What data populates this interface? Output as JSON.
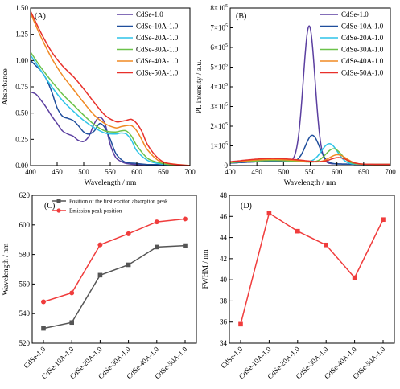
{
  "chart_data": [
    {
      "panel": "(A)",
      "type": "line",
      "xlabel": "Wavelength / nm",
      "ylabel": "Absorbance",
      "xlim": [
        400,
        700
      ],
      "ylim": [
        0,
        1.5
      ],
      "xticks": [
        400,
        450,
        500,
        550,
        600,
        650,
        700
      ],
      "yticks": [
        0.0,
        0.25,
        0.5,
        0.75,
        1.0,
        1.25,
        1.5
      ],
      "ytick_labels": [
        "0.00",
        "0.25",
        "0.50",
        "0.75",
        "1.00",
        "1.25",
        "1.50"
      ],
      "legend": "top-right",
      "series": [
        {
          "name": "CdSe-1.0",
          "color": "#5b3fa0",
          "x": [
            400,
            410,
            420,
            430,
            440,
            450,
            460,
            470,
            480,
            490,
            500,
            510,
            520,
            530,
            540,
            550,
            560,
            570,
            580,
            600,
            620,
            650,
            700
          ],
          "y": [
            0.7,
            0.68,
            0.62,
            0.55,
            0.47,
            0.4,
            0.33,
            0.3,
            0.28,
            0.24,
            0.23,
            0.28,
            0.4,
            0.46,
            0.4,
            0.2,
            0.08,
            0.04,
            0.02,
            0.01,
            0.01,
            0.0,
            0.0
          ]
        },
        {
          "name": "CdSe-10A-1.0",
          "color": "#1f4e9c",
          "x": [
            400,
            410,
            420,
            430,
            440,
            450,
            460,
            470,
            480,
            490,
            500,
            510,
            520,
            530,
            540,
            550,
            560,
            570,
            580,
            600,
            620,
            650,
            700
          ],
          "y": [
            1.0,
            0.95,
            0.9,
            0.82,
            0.7,
            0.55,
            0.47,
            0.45,
            0.43,
            0.38,
            0.32,
            0.3,
            0.33,
            0.4,
            0.36,
            0.25,
            0.12,
            0.06,
            0.03,
            0.02,
            0.01,
            0.01,
            0.0
          ]
        },
        {
          "name": "CdSe-20A-1.0",
          "color": "#2ec4e8",
          "x": [
            400,
            420,
            440,
            460,
            480,
            500,
            520,
            540,
            560,
            570,
            580,
            590,
            600,
            620,
            640,
            660,
            700
          ],
          "y": [
            1.05,
            0.9,
            0.75,
            0.62,
            0.52,
            0.43,
            0.36,
            0.31,
            0.3,
            0.31,
            0.3,
            0.24,
            0.14,
            0.05,
            0.02,
            0.01,
            0.0
          ]
        },
        {
          "name": "CdSe-30A-1.0",
          "color": "#6cc24a",
          "x": [
            400,
            420,
            440,
            460,
            480,
            500,
            520,
            540,
            560,
            570,
            580,
            590,
            600,
            620,
            640,
            660,
            700
          ],
          "y": [
            1.08,
            0.93,
            0.8,
            0.68,
            0.58,
            0.48,
            0.39,
            0.33,
            0.32,
            0.33,
            0.33,
            0.28,
            0.19,
            0.07,
            0.03,
            0.01,
            0.0
          ]
        },
        {
          "name": "CdSe-40A-1.0",
          "color": "#f08a24",
          "x": [
            400,
            420,
            440,
            460,
            480,
            500,
            520,
            540,
            560,
            570,
            580,
            590,
            600,
            610,
            620,
            640,
            660,
            700
          ],
          "y": [
            1.45,
            1.22,
            1.02,
            0.86,
            0.73,
            0.6,
            0.48,
            0.4,
            0.36,
            0.37,
            0.38,
            0.38,
            0.33,
            0.24,
            0.15,
            0.05,
            0.02,
            0.0
          ]
        },
        {
          "name": "CdSe-50A-1.0",
          "color": "#e8302a",
          "x": [
            400,
            420,
            440,
            460,
            480,
            500,
            520,
            540,
            560,
            570,
            580,
            590,
            600,
            610,
            620,
            640,
            660,
            700
          ],
          "y": [
            1.47,
            1.26,
            1.08,
            0.95,
            0.85,
            0.73,
            0.6,
            0.48,
            0.42,
            0.42,
            0.43,
            0.44,
            0.4,
            0.32,
            0.2,
            0.07,
            0.02,
            0.0
          ]
        }
      ]
    },
    {
      "panel": "(B)",
      "type": "line",
      "xlabel": "Wavelength / nm",
      "ylabel": "PL intensity / a.u.",
      "xlim": [
        400,
        700
      ],
      "ylim": [
        0,
        800000
      ],
      "xticks": [
        400,
        450,
        500,
        550,
        600,
        650,
        700
      ],
      "yticks": [
        0,
        100000,
        200000,
        300000,
        400000,
        500000,
        600000,
        700000,
        800000
      ],
      "ytick_labels": [
        [
          "0",
          ""
        ],
        [
          "1×10",
          "5"
        ],
        [
          "2×10",
          "5"
        ],
        [
          "3×10",
          "5"
        ],
        [
          "4×10",
          "5"
        ],
        [
          "5×10",
          "5"
        ],
        [
          "6×10",
          "5"
        ],
        [
          "7×10",
          "5"
        ],
        [
          "8×10",
          "5"
        ]
      ],
      "legend": "top-right",
      "series": [
        {
          "name": "CdSe-1.0",
          "color": "#5b3fa0",
          "peak": 548,
          "amplitude": 695000,
          "width": 11,
          "baseline": 15000
        },
        {
          "name": "CdSe-10A-1.0",
          "color": "#1f4e9c",
          "peak": 554,
          "amplitude": 140000,
          "width": 13,
          "baseline": 15000
        },
        {
          "name": "CdSe-20A-1.0",
          "color": "#2ec4e8",
          "peak": 586,
          "amplitude": 100000,
          "width": 15,
          "baseline": 20000
        },
        {
          "name": "CdSe-30A-1.0",
          "color": "#6cc24a",
          "peak": 594,
          "amplitude": 75000,
          "width": 15,
          "baseline": 20000
        },
        {
          "name": "CdSe-40A-1.0",
          "color": "#f08a24",
          "peak": 602,
          "amplitude": 45000,
          "width": 16,
          "baseline": 25000
        },
        {
          "name": "CdSe-50A-1.0",
          "color": "#e8302a",
          "peak": 604,
          "amplitude": 30000,
          "width": 16,
          "baseline": 30000
        }
      ]
    },
    {
      "panel": "(C)",
      "type": "line",
      "xlabel": "",
      "ylabel": "Wavelength / nm",
      "categories": [
        "CdSe-1.0",
        "CdSe-10A-1.0",
        "CdSe-20A-1.0",
        "CdSe-30A-1.0",
        "CdSe-40A-1.0",
        "CdSe-50A-1.0"
      ],
      "ylim": [
        520,
        620
      ],
      "yticks": [
        520,
        540,
        560,
        580,
        600,
        620
      ],
      "legend": "top-left",
      "series": [
        {
          "name": "Position of the first exciton absorption peak",
          "color": "#555555",
          "marker": "square",
          "values": [
            530,
            534,
            566,
            573,
            585,
            586
          ]
        },
        {
          "name": "Emission peak position",
          "color": "#f03c3c",
          "marker": "circle",
          "values": [
            548,
            554,
            586.5,
            594,
            602,
            604
          ]
        }
      ]
    },
    {
      "panel": "(D)",
      "type": "line",
      "xlabel": "",
      "ylabel": "FWHM / nm",
      "categories": [
        "CdSe-1.0",
        "CdSe-10A-1.0",
        "CdSe-20A-1.0",
        "CdSe-30A-1.0",
        "CdSe-40A-1.0",
        "CdSe-50A-1.0"
      ],
      "ylim": [
        34,
        48
      ],
      "yticks": [
        34,
        36,
        38,
        40,
        42,
        44,
        46,
        48
      ],
      "series": [
        {
          "name": "",
          "color": "#f03c3c",
          "marker": "square",
          "values": [
            35.8,
            46.3,
            44.6,
            43.3,
            40.2,
            45.7
          ]
        }
      ]
    }
  ]
}
